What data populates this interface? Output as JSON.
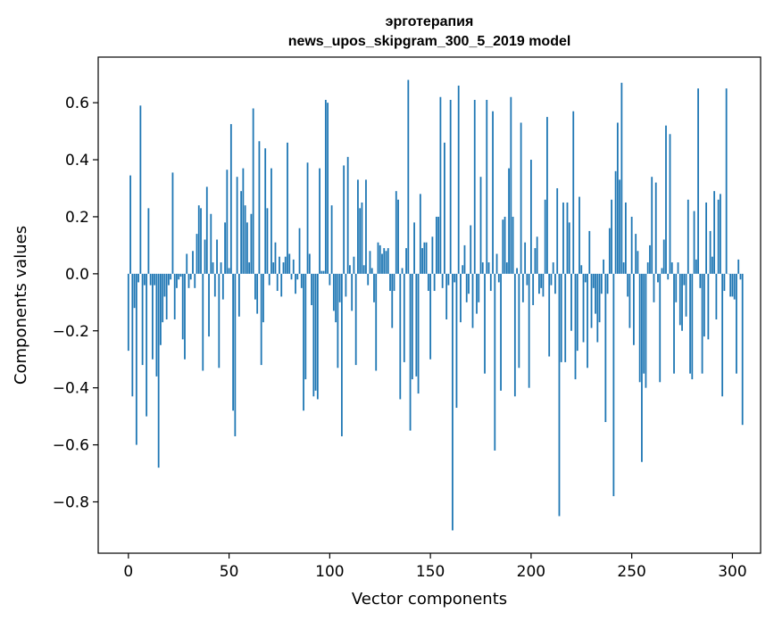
{
  "chart_data": {
    "type": "bar",
    "title": "эрготерапия",
    "subtitle": "news_upos_skipgram_300_5_2019 model",
    "xlabel": "Vector components",
    "ylabel": "Components values",
    "xlim": [
      -15,
      314
    ],
    "ylim": [
      -0.98,
      0.76
    ],
    "x_ticks": [
      0,
      50,
      100,
      150,
      200,
      250,
      300
    ],
    "x_tick_labels": [
      "0",
      "50",
      "100",
      "150",
      "200",
      "250",
      "300"
    ],
    "y_ticks": [
      -0.8,
      -0.6,
      -0.4,
      -0.2,
      0.0,
      0.2,
      0.4,
      0.6
    ],
    "y_tick_labels": [
      "−0.8",
      "−0.6",
      "−0.4",
      "−0.2",
      "0.0",
      "0.2",
      "0.4",
      "0.6"
    ],
    "grid": false,
    "bar_color": "#1f77b4",
    "values": [
      -0.27,
      0.345,
      -0.43,
      -0.12,
      -0.6,
      -0.03,
      0.59,
      -0.32,
      -0.04,
      -0.5,
      0.23,
      -0.04,
      -0.3,
      -0.04,
      -0.36,
      -0.68,
      -0.25,
      -0.17,
      -0.08,
      -0.16,
      -0.04,
      -0.02,
      0.355,
      -0.16,
      -0.05,
      -0.02,
      -0.01,
      -0.23,
      -0.3,
      0.07,
      -0.05,
      -0.02,
      0.08,
      -0.05,
      0.14,
      0.24,
      0.23,
      -0.34,
      0.12,
      0.305,
      -0.22,
      0.21,
      0.04,
      -0.08,
      0.12,
      -0.33,
      0.04,
      -0.09,
      0.18,
      0.365,
      0.02,
      0.525,
      -0.48,
      -0.57,
      0.34,
      -0.15,
      0.29,
      0.37,
      0.24,
      0.18,
      0.04,
      0.21,
      0.58,
      -0.09,
      -0.14,
      0.465,
      -0.32,
      -0.17,
      0.44,
      0.23,
      -0.04,
      0.37,
      0.04,
      0.11,
      -0.06,
      0.06,
      -0.08,
      0.04,
      0.06,
      0.46,
      0.07,
      -0.02,
      0.05,
      -0.07,
      -0.02,
      0.16,
      -0.05,
      -0.48,
      -0.37,
      0.39,
      0.07,
      -0.11,
      -0.43,
      -0.41,
      -0.44,
      0.37,
      0.01,
      0.01,
      0.61,
      0.6,
      -0.04,
      0.24,
      -0.13,
      -0.17,
      -0.33,
      -0.1,
      -0.57,
      0.38,
      -0.08,
      0.41,
      0.03,
      -0.13,
      0.06,
      -0.32,
      0.33,
      0.23,
      0.25,
      0.03,
      0.33,
      -0.04,
      0.08,
      0.02,
      -0.1,
      -0.34,
      0.11,
      0.1,
      0.07,
      0.09,
      0.08,
      0.09,
      -0.06,
      -0.19,
      -0.06,
      0.29,
      0.26,
      -0.44,
      0.02,
      -0.31,
      0.09,
      0.68,
      -0.55,
      -0.37,
      0.18,
      -0.36,
      -0.42,
      0.28,
      0.09,
      0.11,
      0.11,
      -0.06,
      -0.3,
      0.13,
      -0.06,
      0.2,
      0.2,
      0.62,
      -0.05,
      0.46,
      -0.16,
      -0.04,
      0.61,
      -0.9,
      -0.03,
      -0.47,
      0.66,
      -0.17,
      0.03,
      0.1,
      -0.1,
      -0.07,
      0.17,
      -0.19,
      0.61,
      -0.14,
      -0.1,
      0.34,
      0.04,
      -0.35,
      0.61,
      0.04,
      -0.06,
      0.57,
      -0.62,
      0.07,
      -0.03,
      -0.41,
      0.19,
      0.2,
      0.04,
      0.37,
      0.62,
      0.2,
      -0.43,
      0.02,
      -0.33,
      0.53,
      -0.1,
      0.11,
      -0.04,
      -0.4,
      0.4,
      -0.11,
      0.09,
      0.13,
      -0.07,
      -0.05,
      -0.08,
      0.26,
      0.55,
      -0.29,
      -0.04,
      0.04,
      -0.07,
      0.3,
      -0.85,
      -0.31,
      0.25,
      -0.31,
      0.25,
      0.18,
      -0.2,
      0.57,
      -0.37,
      -0.27,
      0.27,
      0.03,
      -0.24,
      -0.03,
      -0.33,
      0.15,
      -0.19,
      -0.05,
      -0.14,
      -0.24,
      -0.17,
      -0.07,
      0.05,
      -0.52,
      -0.07,
      0.16,
      0.26,
      -0.78,
      0.36,
      0.53,
      0.33,
      0.67,
      0.04,
      0.25,
      -0.08,
      -0.19,
      0.2,
      -0.25,
      0.14,
      0.08,
      -0.38,
      -0.66,
      -0.35,
      -0.4,
      0.04,
      0.1,
      0.34,
      -0.1,
      0.32,
      -0.03,
      -0.38,
      0.02,
      0.12,
      0.52,
      -0.02,
      0.49,
      0.04,
      -0.35,
      -0.1,
      0.04,
      -0.18,
      -0.2,
      -0.04,
      -0.15,
      0.26,
      -0.35,
      -0.37,
      0.22,
      0.05,
      0.65,
      -0.05,
      -0.35,
      -0.22,
      0.25,
      -0.23,
      0.15,
      0.06,
      0.29,
      -0.16,
      0.26,
      0.28,
      -0.43,
      -0.06,
      0.65,
      0.0,
      -0.08,
      -0.08,
      -0.09,
      -0.35,
      0.05,
      -0.02,
      -0.53
    ]
  }
}
